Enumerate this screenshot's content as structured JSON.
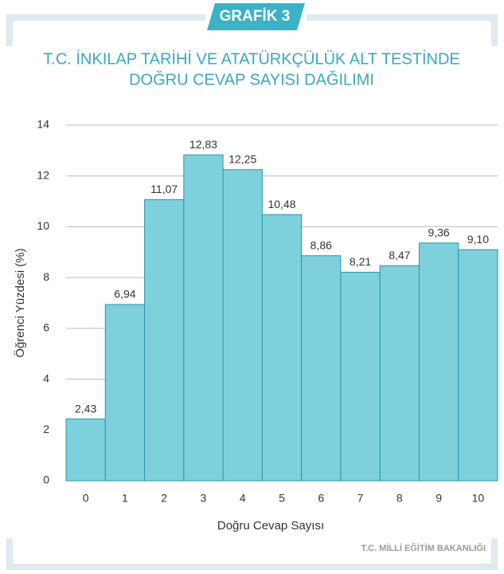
{
  "chart_data": {
    "type": "bar",
    "label": "GRAFİK 3",
    "title": [
      "T.C. İNKILAP TARİHİ VE ATATÜRKÇÜLÜK ALT TESTİNDE",
      "DOĞRU CEVAP SAYISI DAĞILIMI"
    ],
    "x_label": "Doğru Cevap Sayısı",
    "y_label": "Öğrenci Yüzdesi (%)",
    "source": "T.C. MİLLİ EĞİTİM BAKANLIĞI",
    "categories": [
      "0",
      "1",
      "2",
      "3",
      "4",
      "5",
      "6",
      "7",
      "8",
      "9",
      "10"
    ],
    "values": [
      2.43,
      6.94,
      11.07,
      12.83,
      12.25,
      10.48,
      8.86,
      8.21,
      8.47,
      9.36,
      9.1
    ],
    "value_labels": [
      "2,43",
      "6,94",
      "11,07",
      "12,83",
      "12,25",
      "10,48",
      "8,86",
      "8,21",
      "8,47",
      "9,36",
      "9,10"
    ],
    "color": "#7ed0dc",
    "ylim": [
      0,
      14
    ],
    "yticks": [
      0,
      2,
      4,
      6,
      8,
      10,
      12,
      14
    ],
    "grid": true
  }
}
